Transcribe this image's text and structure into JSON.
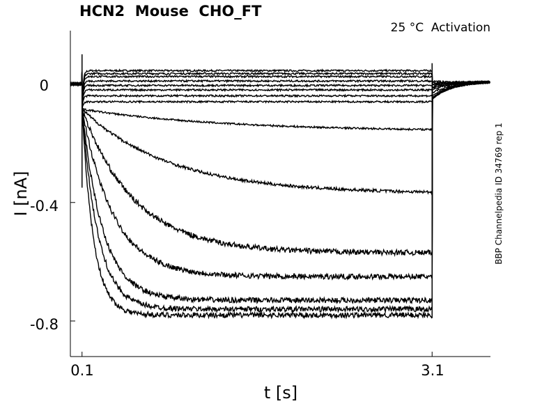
{
  "chart_data": {
    "type": "line",
    "title": "HCN2  Mouse  CHO_FT",
    "annotation": "25 °C  Activation",
    "side_label": "BBP Channelpedia ID 34769 rep 1",
    "xlabel": "t [s]",
    "ylabel": "I [nA]",
    "xlim": [
      0.0,
      3.6
    ],
    "ylim": [
      -0.92,
      0.18
    ],
    "x_ticks": [
      {
        "value": 0.1,
        "label": "0.1"
      },
      {
        "value": 3.1,
        "label": "3.1"
      }
    ],
    "y_ticks": [
      {
        "value": 0.0,
        "label": "0"
      },
      {
        "value": -0.4,
        "label": "-0.4"
      },
      {
        "value": -0.8,
        "label": "-0.8"
      }
    ],
    "grid": false,
    "line_color": "#000000",
    "pulse_start": 0.1,
    "pulse_end": 3.1,
    "series": [
      {
        "steady": 0.045,
        "tau": 0.3,
        "post": 0.01
      },
      {
        "steady": 0.035,
        "tau": 0.3,
        "post": 0.005
      },
      {
        "steady": 0.025,
        "tau": 0.3,
        "post": 0.0
      },
      {
        "steady": 0.01,
        "tau": 0.3,
        "post": -0.005
      },
      {
        "steady": -0.005,
        "tau": 0.3,
        "post": -0.01
      },
      {
        "steady": -0.02,
        "tau": 0.4,
        "post": -0.015
      },
      {
        "steady": -0.04,
        "tau": 0.5,
        "post": -0.02
      },
      {
        "steady": -0.06,
        "tau": 0.6,
        "post": -0.03
      },
      {
        "steady": -0.16,
        "tau": 1.2,
        "post": -0.04
      },
      {
        "steady": -0.37,
        "tau": 0.75,
        "post": -0.05
      },
      {
        "steady": -0.57,
        "tau": 0.45,
        "post": -0.05
      },
      {
        "steady": -0.65,
        "tau": 0.27,
        "post": -0.05
      },
      {
        "steady": -0.73,
        "tau": 0.18,
        "post": -0.05
      },
      {
        "steady": -0.76,
        "tau": 0.14,
        "post": -0.05
      },
      {
        "steady": -0.78,
        "tau": 0.1,
        "post": -0.05
      }
    ]
  }
}
